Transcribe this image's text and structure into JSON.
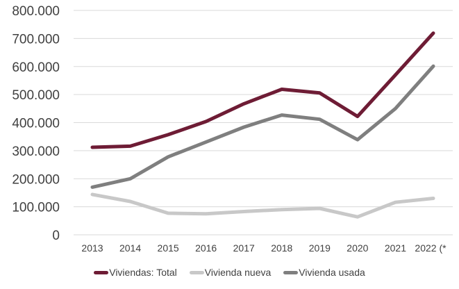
{
  "chart_data": {
    "type": "line",
    "title": "",
    "xlabel": "",
    "ylabel": "",
    "categories": [
      "2013",
      "2014",
      "2015",
      "2016",
      "2017",
      "2018",
      "2019",
      "2020",
      "2021",
      "2022 (*"
    ],
    "ylim": [
      0,
      800000
    ],
    "yticks": [
      0,
      100000,
      200000,
      300000,
      400000,
      500000,
      600000,
      700000,
      800000
    ],
    "ytick_labels": [
      "0",
      "100.000",
      "200.000",
      "300.000",
      "400.000",
      "500.000",
      "600.000",
      "700.000",
      "800.000"
    ],
    "grid": true,
    "legend_position": "bottom",
    "series": [
      {
        "name": "Viviendas: Total",
        "color": "#6E1C35",
        "values": [
          312000,
          316000,
          357000,
          404000,
          467000,
          519000,
          506000,
          422000,
          570000,
          719000
        ]
      },
      {
        "name": "Vivienda nueva",
        "color": "#C8C8C8",
        "values": [
          144000,
          119000,
          77000,
          75000,
          83000,
          90000,
          94000,
          64000,
          116000,
          130000
        ]
      },
      {
        "name": "Vivienda usada",
        "color": "#7F7F7F",
        "values": [
          170000,
          200000,
          278000,
          331000,
          384000,
          427000,
          412000,
          339000,
          450000,
          601000
        ]
      }
    ]
  }
}
